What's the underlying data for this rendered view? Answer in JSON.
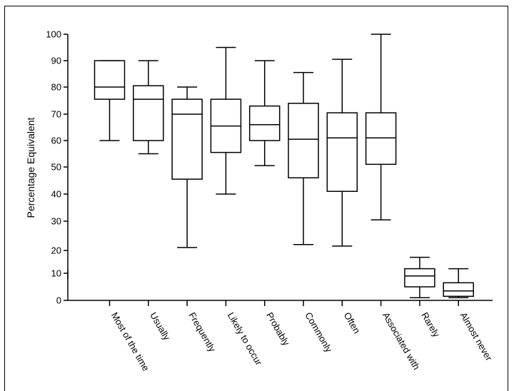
{
  "chart_data": {
    "type": "boxplot",
    "title": "",
    "xlabel": "",
    "ylabel": "Percentage Equivalent",
    "ylim": [
      0,
      100
    ],
    "yticks": [
      0,
      10,
      20,
      30,
      40,
      50,
      60,
      70,
      80,
      90,
      100
    ],
    "categories": [
      "Most of the time",
      "Usually",
      "Frequently",
      "Likely to occur",
      "Probably",
      "Commonly",
      "Often",
      "Associated with",
      "Rarely",
      "Almost never"
    ],
    "boxes": [
      {
        "min": 60,
        "q1": 75.5,
        "median": 80,
        "q3": 90,
        "max": 90
      },
      {
        "min": 55,
        "q1": 60,
        "median": 75.5,
        "q3": 80.5,
        "max": 90
      },
      {
        "min": 21,
        "q1": 45.5,
        "median": 70,
        "q3": 75.5,
        "max": 80
      },
      {
        "min": 40,
        "q1": 55.5,
        "median": 65.5,
        "q3": 75.5,
        "max": 95
      },
      {
        "min": 50.5,
        "q1": 60,
        "median": 66,
        "q3": 73,
        "max": 90
      },
      {
        "min": 22,
        "q1": 46,
        "median": 60.5,
        "q3": 74,
        "max": 85.5
      },
      {
        "min": 21.5,
        "q1": 41,
        "median": 61,
        "q3": 70.5,
        "max": 90.5
      },
      {
        "min": 30.5,
        "q1": 51,
        "median": 61,
        "q3": 70.5,
        "max": 100
      },
      {
        "min": 1,
        "q1": 5,
        "median": 9,
        "q3": 12,
        "max": 17
      },
      {
        "min": 1,
        "q1": 1.5,
        "median": 3.5,
        "q3": 6.5,
        "max": 12
      }
    ]
  }
}
